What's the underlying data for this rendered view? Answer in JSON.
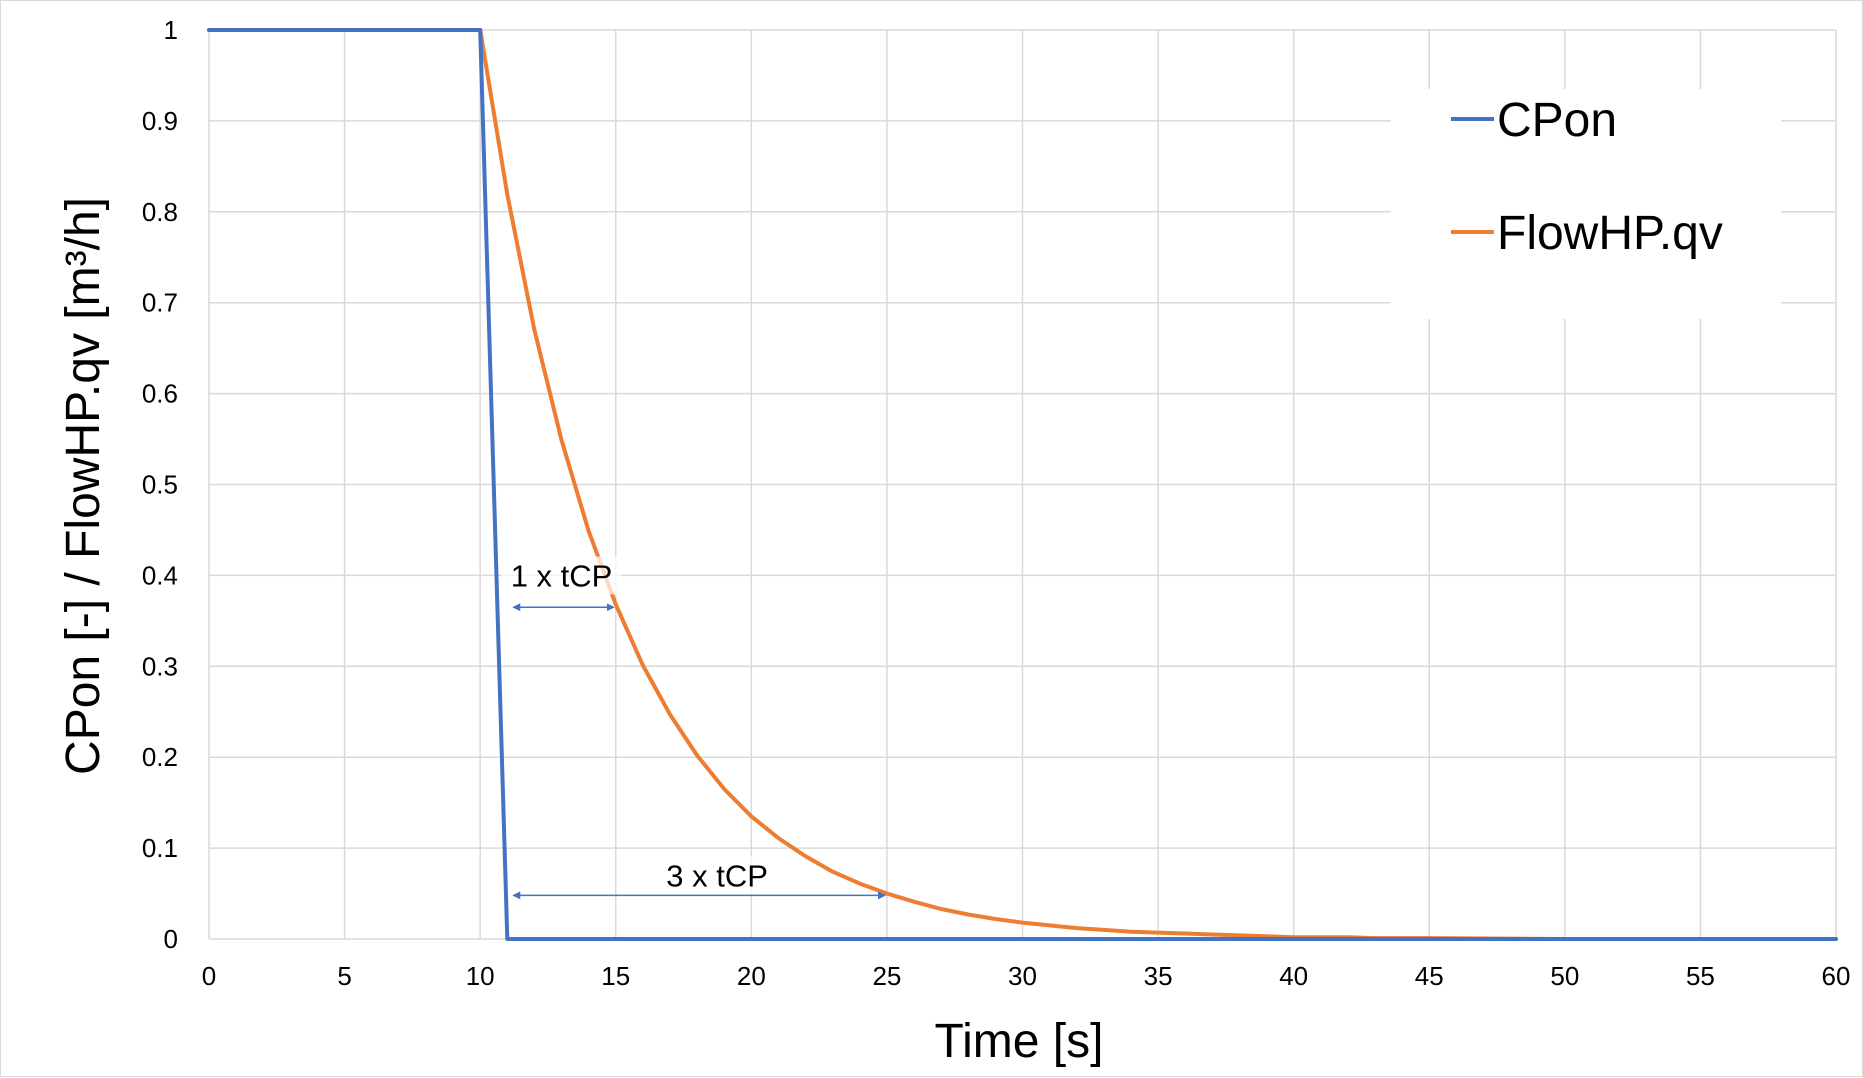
{
  "chart_data": {
    "type": "line",
    "xlabel": "Time [s]",
    "ylabel": "CPon [-] / FlowHP.qv [m³/h]",
    "xlim": [
      0,
      60
    ],
    "ylim": [
      0,
      1
    ],
    "x_ticks": [
      0,
      5,
      10,
      15,
      20,
      25,
      30,
      35,
      40,
      45,
      50,
      55,
      60
    ],
    "y_ticks": [
      0,
      0.1,
      0.2,
      0.3,
      0.4,
      0.5,
      0.6,
      0.7,
      0.8,
      0.9,
      1
    ],
    "x_tick_labels": [
      "0",
      "5",
      "10",
      "15",
      "20",
      "25",
      "30",
      "35",
      "40",
      "45",
      "50",
      "55",
      "60"
    ],
    "y_tick_labels": [
      "0",
      "0.1",
      "0.2",
      "0.3",
      "0.4",
      "0.5",
      "0.6",
      "0.7",
      "0.8",
      "0.9",
      "1"
    ],
    "grid": true,
    "legend_position": "top-right",
    "series": [
      {
        "name": "CPon",
        "color": "#4472c4",
        "x": [
          0,
          10,
          11,
          60
        ],
        "y": [
          1,
          1,
          0,
          0
        ]
      },
      {
        "name": "FlowHP.qv",
        "color": "#ed7d31",
        "x": [
          0,
          10,
          11,
          12,
          13,
          14,
          15,
          16,
          17,
          18,
          19,
          20,
          21,
          22,
          23,
          24,
          25,
          26,
          27,
          28,
          29,
          30,
          31,
          32,
          33,
          34,
          35,
          36,
          37,
          38,
          39,
          40,
          41,
          42,
          43,
          44,
          45,
          50,
          55,
          60
        ],
        "y": [
          1,
          1,
          0.819,
          0.67,
          0.549,
          0.449,
          0.368,
          0.301,
          0.247,
          0.202,
          0.165,
          0.135,
          0.111,
          0.091,
          0.074,
          0.061,
          0.05,
          0.041,
          0.033,
          0.027,
          0.022,
          0.018,
          0.015,
          0.012,
          0.01,
          0.008,
          0.007,
          0.006,
          0.005,
          0.004,
          0.003,
          0.002,
          0.002,
          0.002,
          0.001,
          0.001,
          0.001,
          0,
          0,
          0
        ]
      }
    ],
    "annotations": [
      {
        "text": "1 x tCP",
        "x_start": 11,
        "x_end": 15,
        "arrow_y": 0.365,
        "label_y": 0.4
      },
      {
        "text": "3 x tCP",
        "x_start": 11,
        "x_end": 25,
        "arrow_y": 0.048,
        "label_y": 0.07
      }
    ],
    "colors": {
      "gridline": "#d9d9d9",
      "annotation_arrow": "#4472c4",
      "text": "#000000"
    }
  }
}
